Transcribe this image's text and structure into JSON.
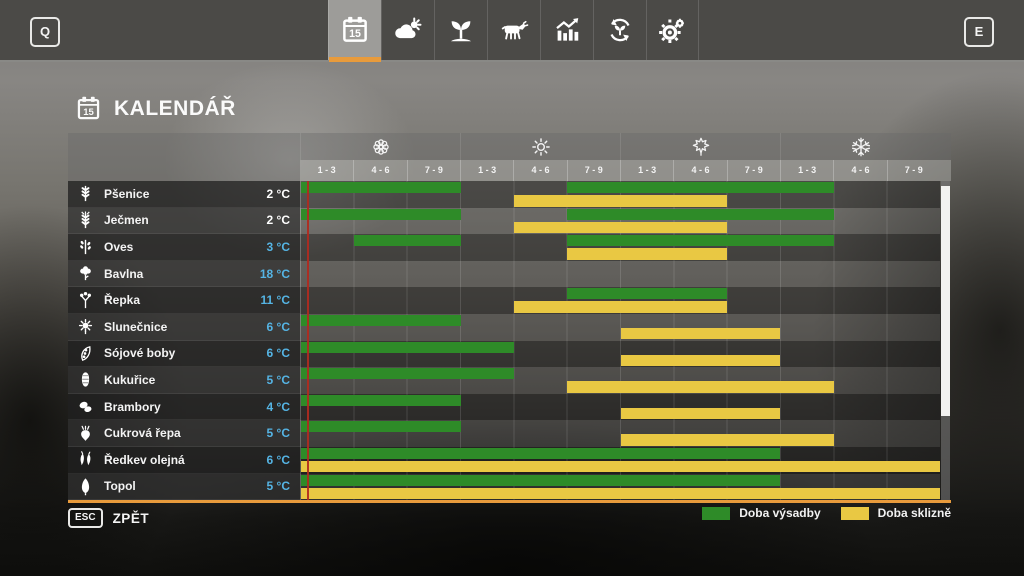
{
  "colors": {
    "accent": "#e89b3c",
    "today_line": "#b02a20",
    "temp_ready": "#ffffff",
    "temp_cold": "#55b4e4"
  },
  "topbar": {
    "left_key": "Q",
    "right_key": "E",
    "tabs": [
      {
        "name": "calendar",
        "icon": "calendar-icon",
        "selected": true
      },
      {
        "name": "weather",
        "icon": "weather-icon",
        "selected": false
      },
      {
        "name": "crops",
        "icon": "crops-icon",
        "selected": false
      },
      {
        "name": "animals",
        "icon": "animals-icon",
        "selected": false
      },
      {
        "name": "finances",
        "icon": "finances-icon",
        "selected": false
      },
      {
        "name": "production",
        "icon": "production-icon",
        "selected": false
      },
      {
        "name": "settings",
        "icon": "settings-icon",
        "selected": false
      }
    ]
  },
  "page": {
    "title": "KALENDÁŘ"
  },
  "footer": {
    "back_key": "ESC",
    "back_label": "ZPĚT"
  },
  "legend": [
    {
      "label": "Doba výsadby",
      "color": "#2e8b28"
    },
    {
      "label": "Doba sklizně",
      "color": "#e9c843"
    }
  ],
  "chart_data": {
    "type": "gantt-calendar",
    "title": "KALENDÁŘ",
    "seasons": [
      {
        "name": "spring",
        "icon": "flower-icon"
      },
      {
        "name": "summer",
        "icon": "sun-icon"
      },
      {
        "name": "autumn",
        "icon": "leaf-icon"
      },
      {
        "name": "winter",
        "icon": "snowflake-icon"
      }
    ],
    "period_labels": [
      "1 - 3",
      "4 - 6",
      "7 - 9"
    ],
    "columns_total": 12,
    "today_line_fraction": 0.011,
    "colors": {
      "plant": "#2e8b28",
      "harvest": "#e9c843"
    },
    "legend": {
      "plant": "Doba výsadby",
      "harvest": "Doba sklizně"
    },
    "rows": [
      {
        "crop": "Pšenice",
        "icon": "wheat-icon",
        "temp": "2 °C",
        "temp_color": "#ffffff",
        "plant": [
          [
            1,
            3
          ],
          [
            6,
            10
          ]
        ],
        "harvest": [
          [
            5,
            8
          ]
        ]
      },
      {
        "crop": "Ječmen",
        "icon": "barley-icon",
        "temp": "2 °C",
        "temp_color": "#ffffff",
        "plant": [
          [
            1,
            3
          ],
          [
            6,
            10
          ]
        ],
        "harvest": [
          [
            5,
            8
          ]
        ]
      },
      {
        "crop": "Oves",
        "icon": "oat-icon",
        "temp": "3 °C",
        "temp_color": "#55b4e4",
        "plant": [
          [
            2,
            3
          ],
          [
            6,
            10
          ]
        ],
        "harvest": [
          [
            6,
            8
          ]
        ]
      },
      {
        "crop": "Bavlna",
        "icon": "cotton-icon",
        "temp": "18 °C",
        "temp_color": "#55b4e4",
        "plant": [],
        "harvest": []
      },
      {
        "crop": "Řepka",
        "icon": "canola-icon",
        "temp": "11 °C",
        "temp_color": "#55b4e4",
        "plant": [
          [
            6,
            8
          ]
        ],
        "harvest": [
          [
            5,
            8
          ]
        ]
      },
      {
        "crop": "Slunečnice",
        "icon": "sunflower-icon",
        "temp": "6 °C",
        "temp_color": "#55b4e4",
        "plant": [
          [
            1,
            3
          ]
        ],
        "harvest": [
          [
            7,
            9
          ]
        ]
      },
      {
        "crop": "Sójové boby",
        "icon": "soybean-icon",
        "temp": "6 °C",
        "temp_color": "#55b4e4",
        "plant": [
          [
            1,
            4
          ]
        ],
        "harvest": [
          [
            7,
            9
          ]
        ]
      },
      {
        "crop": "Kukuřice",
        "icon": "corn-icon",
        "temp": "5 °C",
        "temp_color": "#55b4e4",
        "plant": [
          [
            1,
            4
          ]
        ],
        "harvest": [
          [
            6,
            10
          ]
        ]
      },
      {
        "crop": "Brambory",
        "icon": "potato-icon",
        "temp": "4 °C",
        "temp_color": "#55b4e4",
        "plant": [
          [
            1,
            3
          ]
        ],
        "harvest": [
          [
            7,
            9
          ]
        ]
      },
      {
        "crop": "Cukrová řepa",
        "icon": "sugarbeet-icon",
        "temp": "5 °C",
        "temp_color": "#55b4e4",
        "plant": [
          [
            1,
            3
          ]
        ],
        "harvest": [
          [
            7,
            10
          ]
        ]
      },
      {
        "crop": "Ředkev olejná",
        "icon": "radish-icon",
        "temp": "6 °C",
        "temp_color": "#55b4e4",
        "plant": [
          [
            1,
            9
          ]
        ],
        "harvest": [
          [
            1,
            12
          ]
        ]
      },
      {
        "crop": "Topol",
        "icon": "poplar-icon",
        "temp": "5 °C",
        "temp_color": "#55b4e4",
        "plant": [
          [
            1,
            9
          ]
        ],
        "harvest": [
          [
            1,
            12
          ]
        ]
      }
    ]
  }
}
